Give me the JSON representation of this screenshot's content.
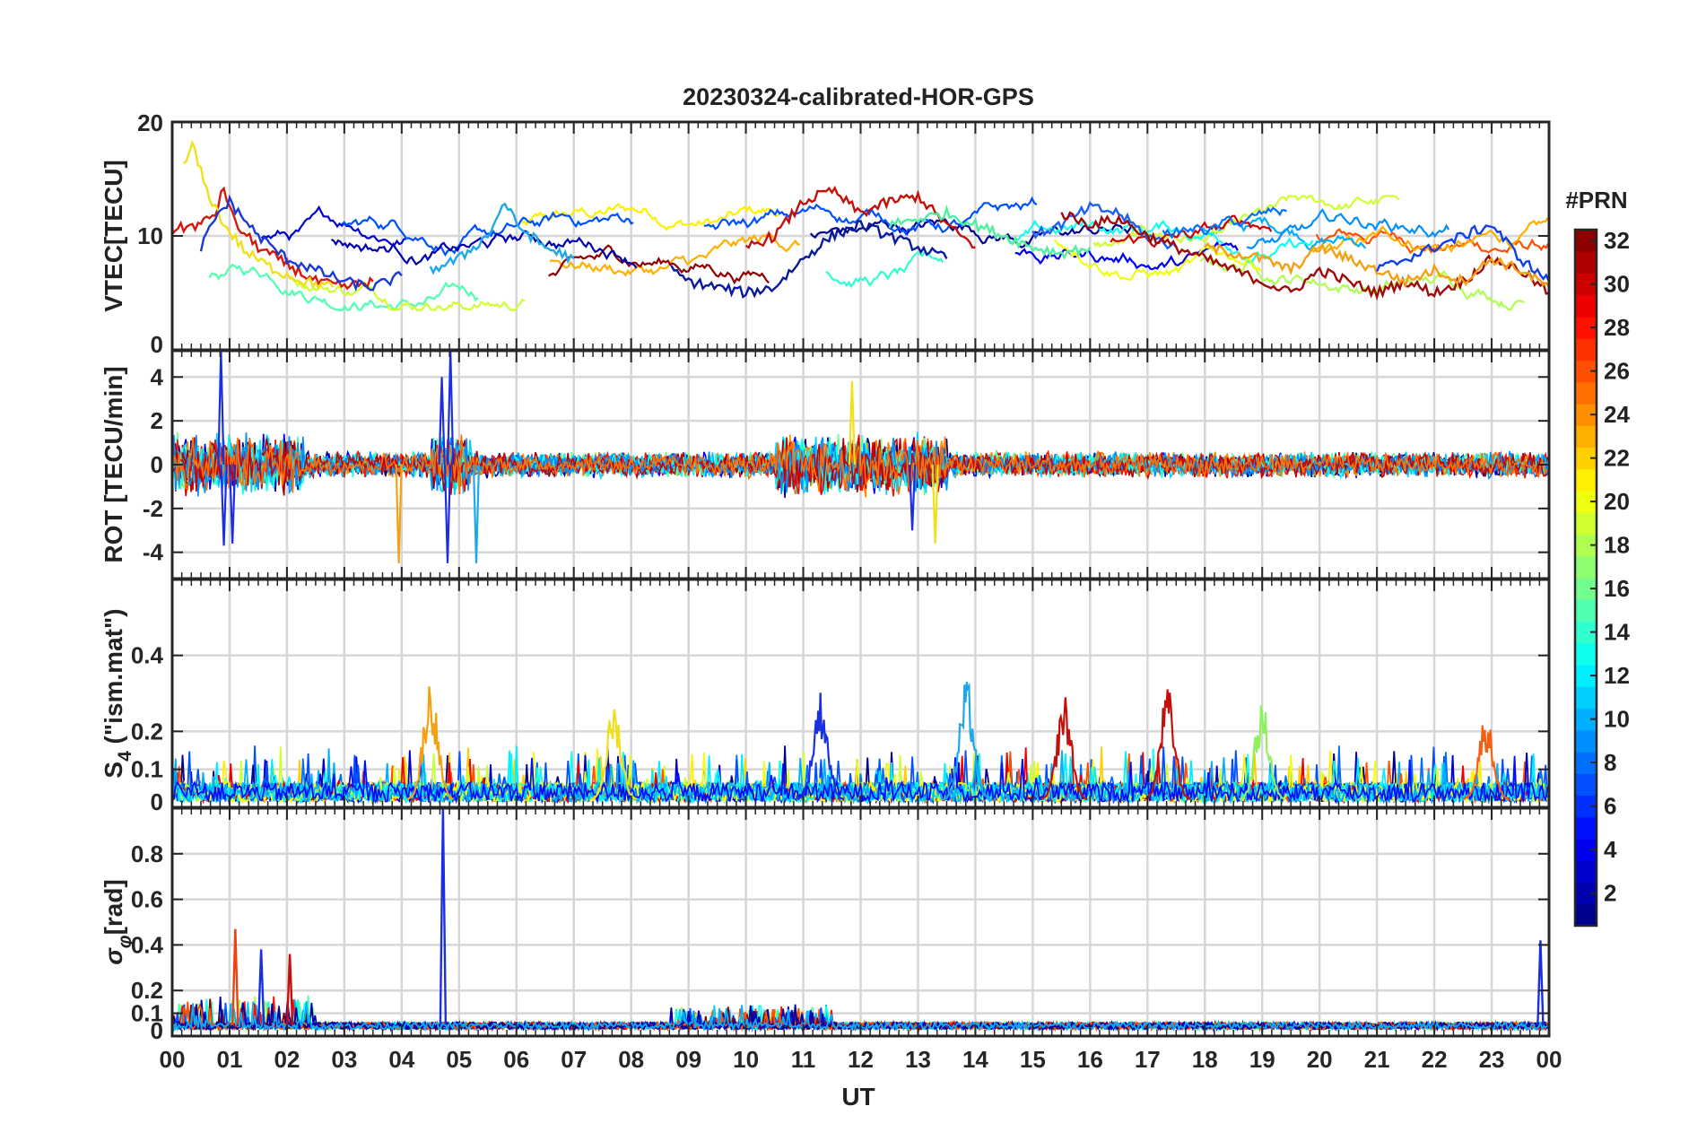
{
  "chart_data": {
    "title": "20230324-calibrated-HOR-GPS",
    "type": "line",
    "xlabel": "UT",
    "x_ticks": [
      "00",
      "01",
      "02",
      "03",
      "04",
      "05",
      "06",
      "07",
      "08",
      "09",
      "10",
      "11",
      "12",
      "13",
      "14",
      "15",
      "16",
      "17",
      "18",
      "19",
      "20",
      "21",
      "22",
      "23",
      "00"
    ],
    "xlim": [
      0,
      24
    ],
    "colorbar": {
      "label": "#PRN",
      "range": [
        1,
        32
      ],
      "ticks": [
        "2",
        "4",
        "6",
        "8",
        "10",
        "12",
        "14",
        "16",
        "18",
        "20",
        "22",
        "24",
        "26",
        "28",
        "30",
        "32"
      ],
      "colormap": "jet"
    },
    "panels": [
      {
        "name": "vtec",
        "ylabel": "VTEC[TECU]",
        "ylim": [
          0,
          20
        ],
        "yticks": [
          "0",
          "10",
          "20"
        ],
        "series": [
          {
            "prn": 31,
            "color": "#d4180c",
            "x": [
              0,
              0.25,
              0.5,
              0.75,
              0.9,
              1.1,
              1.5,
              2,
              2.5,
              3,
              3.5
            ],
            "values": [
              10.5,
              10.8,
              11,
              12,
              14.2,
              11,
              9,
              7.5,
              6,
              5.5,
              6
            ]
          },
          {
            "prn": 20,
            "color": "#f0e01a",
            "x": [
              0.2,
              0.35,
              0.6,
              0.9,
              1.3,
              1.8,
              2.3,
              2.8
            ],
            "values": [
              16,
              18,
              14,
              11,
              8.5,
              7,
              6,
              5.5
            ]
          },
          {
            "prn": 5,
            "color": "#1a3ad8",
            "x": [
              0.5,
              0.8,
              1.0,
              1.5,
              2,
              2.5,
              3,
              3.5,
              4
            ],
            "values": [
              9,
              12,
              13,
              10,
              8,
              7,
              6,
              5.5,
              6.5
            ]
          },
          {
            "prn": 11,
            "color": "#1fa8e8",
            "x": [
              4.5,
              5,
              5.5,
              5.8,
              6,
              6.5,
              7
            ],
            "values": [
              7,
              8,
              10,
              13,
              11,
              9,
              8
            ]
          },
          {
            "prn": 3,
            "color": "#0a1aa0",
            "x": [
              8.7,
              9,
              9.5,
              10,
              10.5,
              11,
              11.5,
              12,
              12.5,
              13,
              13.5
            ],
            "values": [
              7,
              6,
              5.5,
              5,
              5.5,
              8,
              10,
              11,
              10,
              9,
              8
            ]
          },
          {
            "prn": 29,
            "color": "#c4100a",
            "x": [
              10,
              10.5,
              11,
              11.5,
              12,
              12.5,
              13,
              13.5,
              14
            ],
            "values": [
              9,
              10,
              13,
              14,
              12,
              13,
              13.5,
              11,
              9
            ]
          },
          {
            "prn": 15,
            "color": "#4ef0a0",
            "x": [
              12.5,
              13,
              13.5,
              14,
              14.5,
              15,
              15.5,
              16
            ],
            "values": [
              11,
              11.5,
              12,
              11,
              10,
              9,
              8.5,
              9
            ]
          },
          {
            "prn": 9,
            "color": "#1e60f0",
            "x": [
              15,
              15.5,
              16,
              16.5,
              17,
              17.5
            ],
            "values": [
              10,
              11,
              12.5,
              12,
              10,
              9
            ]
          },
          {
            "prn": 30,
            "color": "#a00a0a",
            "x": [
              15.5,
              16,
              16.5,
              17,
              17.5,
              18,
              18.5,
              19,
              19.5,
              20,
              20.5,
              21,
              21.5,
              22,
              22.5,
              23,
              23.5,
              24
            ],
            "values": [
              12,
              11,
              11.5,
              10,
              9,
              8,
              7,
              6,
              5,
              7,
              6,
              5,
              6,
              5,
              6,
              8,
              7,
              5
            ]
          },
          {
            "prn": 22,
            "color": "#f5a010",
            "x": [
              18,
              18.5,
              19,
              19.5,
              20,
              20.5,
              21,
              21.5,
              22,
              22.5,
              23,
              23.5,
              24
            ],
            "values": [
              9,
              8.5,
              8,
              7,
              9,
              8,
              7,
              6,
              7,
              6,
              8,
              7,
              5.5
            ]
          },
          {
            "prn": 7,
            "color": "#1040e8",
            "x": [
              21,
              21.5,
              22,
              22.5,
              23,
              23.5,
              24
            ],
            "values": [
              7,
              8,
              9,
              10,
              11,
              8,
              6
            ]
          }
        ]
      },
      {
        "name": "rot",
        "ylabel": "ROT [TECU/min]",
        "ylim": [
          -5.2,
          5.2
        ],
        "yticks": [
          "-4",
          "-2",
          "0",
          "2",
          "4"
        ],
        "spikes": [
          {
            "x": 0.85,
            "value": 5.2,
            "color": "#1a30e0"
          },
          {
            "x": 0.9,
            "value": -3.7,
            "color": "#1a30e0"
          },
          {
            "x": 1.05,
            "value": -3.6,
            "color": "#1a30e0"
          },
          {
            "x": 3.95,
            "value": -4.5,
            "color": "#f5a010"
          },
          {
            "x": 4.7,
            "value": 4.0,
            "color": "#1a30e0"
          },
          {
            "x": 4.85,
            "value": 5.2,
            "color": "#1a30e0"
          },
          {
            "x": 4.8,
            "value": -4.5,
            "color": "#1a30e0"
          },
          {
            "x": 5.3,
            "value": -4.5,
            "color": "#1fa8e8"
          },
          {
            "x": 11.85,
            "value": 3.8,
            "color": "#f0e01a"
          },
          {
            "x": 12.9,
            "value": -3.0,
            "color": "#1a30e0"
          },
          {
            "x": 13.3,
            "value": -3.6,
            "color": "#f0e01a"
          }
        ]
      },
      {
        "name": "s4",
        "ylabel": "S4 (\"ism.mat\")",
        "ylabel_main": "S",
        "ylabel_sub": "4",
        "ylabel_rest": " (\"ism.mat\")",
        "ylim": [
          0,
          0.6
        ],
        "yticks": [
          "0",
          "0.1",
          "0.2",
          "0.4"
        ],
        "peaks": [
          {
            "x": 4.5,
            "value": 0.32,
            "color": "#f5a010"
          },
          {
            "x": 7.7,
            "value": 0.26,
            "color": "#f0e01a"
          },
          {
            "x": 11.3,
            "value": 0.29,
            "color": "#1a30e0"
          },
          {
            "x": 13.85,
            "value": 0.32,
            "color": "#1fa8e8"
          },
          {
            "x": 15.55,
            "value": 0.28,
            "color": "#c4100a"
          },
          {
            "x": 17.35,
            "value": 0.3,
            "color": "#c4100a"
          },
          {
            "x": 19.0,
            "value": 0.26,
            "color": "#8ef060"
          },
          {
            "x": 22.9,
            "value": 0.23,
            "color": "#f56010"
          }
        ]
      },
      {
        "name": "sigma_phi",
        "ylabel": "σφ[rad]",
        "ylabel_main": "σ",
        "ylabel_sub": "φ",
        "ylabel_rest": "[rad]",
        "ylim": [
          0,
          1.0
        ],
        "yticks": [
          "0",
          "0.1",
          "0.2",
          "0.4",
          "0.6",
          "0.8"
        ],
        "peaks": [
          {
            "x": 1.1,
            "value": 0.47,
            "color": "#f04010"
          },
          {
            "x": 1.55,
            "value": 0.38,
            "color": "#1a30e0"
          },
          {
            "x": 2.05,
            "value": 0.36,
            "color": "#c4100a"
          },
          {
            "x": 4.72,
            "value": 1.0,
            "color": "#1a30e0"
          },
          {
            "x": 23.85,
            "value": 0.42,
            "color": "#1a30e0"
          }
        ]
      }
    ]
  }
}
